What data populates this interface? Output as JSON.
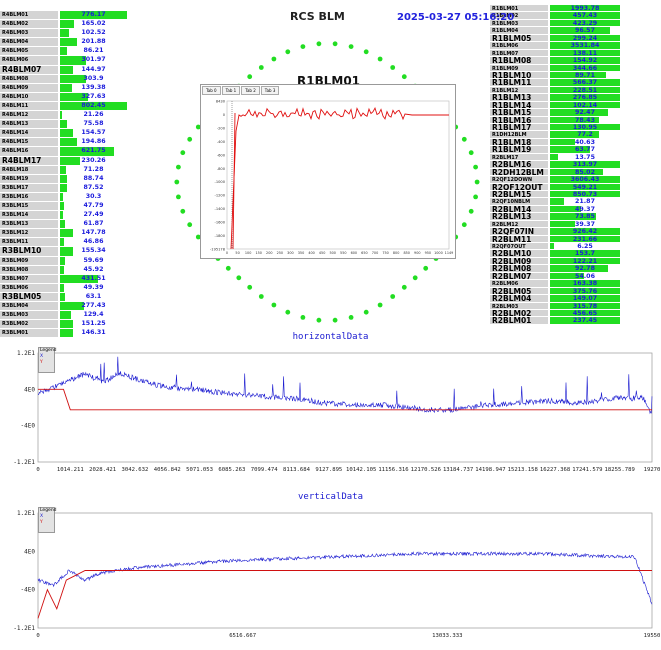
{
  "header": {
    "title": "RCS BLM",
    "timestamp": "2025-03-27 05:16:20",
    "beam_title": "R1BLM01"
  },
  "left_list": [
    {
      "name": "R4BLM01",
      "value": "776.17",
      "fill": 1.0
    },
    {
      "name": "R4BLM02",
      "value": "165.02",
      "fill": 0.21
    },
    {
      "name": "R4BLM03",
      "value": "102.52",
      "fill": 0.13
    },
    {
      "name": "R4BLM04",
      "value": "201.88",
      "fill": 0.26
    },
    {
      "name": "R4BLM05",
      "value": "86.21",
      "fill": 0.11
    },
    {
      "name": "R4BLM06",
      "value": "301.97",
      "fill": 0.39
    },
    {
      "name": "R4BLM07",
      "value": "144.97",
      "fill": 0.19,
      "big": true
    },
    {
      "name": "R4BLM08",
      "value": "303.9",
      "fill": 0.39
    },
    {
      "name": "R4BLM09",
      "value": "139.38",
      "fill": 0.18
    },
    {
      "name": "R4BLM10",
      "value": "327.63",
      "fill": 0.42
    },
    {
      "name": "R4BLM11",
      "value": "802.45",
      "fill": 1.0
    },
    {
      "name": "R4BLM12",
      "value": "21.26",
      "fill": 0.03
    },
    {
      "name": "R4BLM13",
      "value": "75.58",
      "fill": 0.1
    },
    {
      "name": "R4BLM14",
      "value": "154.57",
      "fill": 0.2
    },
    {
      "name": "R4BLM15",
      "value": "194.86",
      "fill": 0.25
    },
    {
      "name": "R4BLM16",
      "value": "621.75",
      "fill": 0.8
    },
    {
      "name": "R4BLM17",
      "value": "230.26",
      "fill": 0.3,
      "big": true
    },
    {
      "name": "R4BLM18",
      "value": "71.28",
      "fill": 0.09
    },
    {
      "name": "R4BLM19",
      "value": "88.74",
      "fill": 0.11
    },
    {
      "name": "R3BLM17",
      "value": "87.52",
      "fill": 0.11
    },
    {
      "name": "R3BLM16",
      "value": "30.3",
      "fill": 0.04
    },
    {
      "name": "R3BLM15",
      "value": "47.79",
      "fill": 0.06
    },
    {
      "name": "R3BLM14",
      "value": "27.49",
      "fill": 0.04
    },
    {
      "name": "R3BLM13",
      "value": "61.87",
      "fill": 0.08
    },
    {
      "name": "R3BLM12",
      "value": "147.78",
      "fill": 0.19
    },
    {
      "name": "R3BLM11",
      "value": "46.86",
      "fill": 0.06
    },
    {
      "name": "R3BLM10",
      "value": "155.34",
      "fill": 0.2,
      "big": true
    },
    {
      "name": "R3BLM09",
      "value": "59.69",
      "fill": 0.08
    },
    {
      "name": "R3BLM08",
      "value": "45.92",
      "fill": 0.06
    },
    {
      "name": "R3BLM07",
      "value": "431.51",
      "fill": 0.56
    },
    {
      "name": "R3BLM06",
      "value": "49.39",
      "fill": 0.06
    },
    {
      "name": "R3BLM05",
      "value": "63.1",
      "fill": 0.08,
      "big": true
    },
    {
      "name": "R3BLM04",
      "value": "277.43",
      "fill": 0.36
    },
    {
      "name": "R3BLM03",
      "value": "129.4",
      "fill": 0.17
    },
    {
      "name": "R3BLM02",
      "value": "151.25",
      "fill": 0.19
    },
    {
      "name": "R3BLM01",
      "value": "146.31",
      "fill": 0.19
    }
  ],
  "right_list": [
    {
      "name": "R1BLM01",
      "value": "1993.78",
      "fill": 1.0
    },
    {
      "name": "R1BLM02",
      "value": "457.43",
      "fill": 1.0
    },
    {
      "name": "R1BLM03",
      "value": "423.29",
      "fill": 1.0
    },
    {
      "name": "R1BLM04",
      "value": "96.57",
      "fill": 0.85
    },
    {
      "name": "R1BLM05",
      "value": "299.24",
      "fill": 1.0,
      "big": true
    },
    {
      "name": "R1BLM06",
      "value": "3531.84",
      "fill": 1.0
    },
    {
      "name": "R1BLM07",
      "value": "138.11",
      "fill": 1.0
    },
    {
      "name": "R1BLM08",
      "value": "154.92",
      "fill": 1.0,
      "big": true
    },
    {
      "name": "R1BLM09",
      "value": "344.66",
      "fill": 1.0
    },
    {
      "name": "R1BLM10",
      "value": "89.71",
      "fill": 0.8,
      "big": true
    },
    {
      "name": "R1BLM11",
      "value": "566.37",
      "fill": 1.0,
      "big": true
    },
    {
      "name": "R1BLM12",
      "value": "228.51",
      "fill": 1.0
    },
    {
      "name": "R1BLM13",
      "value": "276.85",
      "fill": 1.0,
      "big": true
    },
    {
      "name": "R1BLM14",
      "value": "102.14",
      "fill": 1.0,
      "big": true
    },
    {
      "name": "R1BLM15",
      "value": "92.47",
      "fill": 0.83,
      "big": true
    },
    {
      "name": "R1BLM16",
      "value": "78.43",
      "fill": 0.7,
      "big": true
    },
    {
      "name": "R1BLM17",
      "value": "130.95",
      "fill": 1.0,
      "big": true
    },
    {
      "name": "R1DH12BLM",
      "value": "77.2",
      "fill": 0.7
    },
    {
      "name": "R1BLM18",
      "value": "40.63",
      "fill": 0.36,
      "big": true
    },
    {
      "name": "R1BLM19",
      "value": "63.77",
      "fill": 0.57,
      "big": true
    },
    {
      "name": "R2BLM17",
      "value": "13.75",
      "fill": 0.12
    },
    {
      "name": "R2BLM16",
      "value": "313.97",
      "fill": 1.0,
      "big": true
    },
    {
      "name": "R2DH12BLM",
      "value": "85.02",
      "fill": 0.76,
      "big": true
    },
    {
      "name": "R2QF12DOWN",
      "value": "3606.43",
      "fill": 1.0
    },
    {
      "name": "R2QF12OUT",
      "value": "549.21",
      "fill": 1.0,
      "big": true
    },
    {
      "name": "R2BLM15",
      "value": "850.73",
      "fill": 1.0,
      "big": true
    },
    {
      "name": "R2QF10NBLM",
      "value": "21.87",
      "fill": 0.2
    },
    {
      "name": "R2BLM14",
      "value": "49.37",
      "fill": 0.44,
      "big": true
    },
    {
      "name": "R2BLM13",
      "value": "73.85",
      "fill": 0.66,
      "big": true
    },
    {
      "name": "R2BLM12",
      "value": "39.37",
      "fill": 0.35
    },
    {
      "name": "R2QF07IN",
      "value": "926.42",
      "fill": 1.0,
      "big": true
    },
    {
      "name": "R2BLM11",
      "value": "231.66",
      "fill": 1.0,
      "big": true
    },
    {
      "name": "R2QF07OUT",
      "value": "6.25",
      "fill": 0.06
    },
    {
      "name": "R2BLM10",
      "value": "153.7",
      "fill": 1.0,
      "big": true
    },
    {
      "name": "R2BLM09",
      "value": "122.21",
      "fill": 1.0,
      "big": true
    },
    {
      "name": "R2BLM08",
      "value": "92.78",
      "fill": 0.83,
      "big": true
    },
    {
      "name": "R2BLM07",
      "value": "54.06",
      "fill": 0.48,
      "big": true
    },
    {
      "name": "R2BLM06",
      "value": "163.38",
      "fill": 1.0
    },
    {
      "name": "R2BLM05",
      "value": "375.76",
      "fill": 1.0,
      "big": true
    },
    {
      "name": "R2BLM04",
      "value": "149.07",
      "fill": 1.0,
      "big": true
    },
    {
      "name": "R2BLM03",
      "value": "315.78",
      "fill": 1.0
    },
    {
      "name": "R2BLM02",
      "value": "456.65",
      "fill": 1.0,
      "big": true
    },
    {
      "name": "R2BLM01",
      "value": "237.45",
      "fill": 1.0,
      "big": true
    }
  ],
  "mini_chart": {
    "tabs": [
      "Tab 0",
      "Tab 1",
      "Tab 2",
      "Tab 3"
    ],
    "yticks": [
      "8430",
      "0",
      "-200",
      "-400",
      "-600",
      "-800",
      "-1000",
      "-1200",
      "-1400",
      "-1600",
      "-1800",
      "-195178"
    ],
    "xticks": [
      "0",
      "50",
      "100",
      "150",
      "200",
      "250",
      "300",
      "350",
      "400",
      "450",
      "500",
      "550",
      "600",
      "650",
      "700",
      "750",
      "800",
      "850",
      "900",
      "950",
      "1000",
      "1149"
    ]
  },
  "colors": {
    "bar": "#22dd22",
    "value": "#1a1adc",
    "dot": "#22dd22",
    "series_x": "#1a1ad0",
    "series_y": "#d01010"
  },
  "plots": [
    {
      "title": "horizontalData",
      "legend": [
        "Legend",
        "X",
        "Y"
      ],
      "yticks": [
        "1.2E1",
        "4E0",
        "-4E0",
        "-1.2E1"
      ],
      "xticks": [
        "0",
        "1014.211",
        "2028.421",
        "3042.632",
        "4056.842",
        "5071.053",
        "6085.263",
        "7099.474",
        "8113.684",
        "9127.895",
        "10142.105",
        "11156.316",
        "12170.526",
        "13184.737",
        "14198.947",
        "15213.158",
        "16227.368",
        "17241.579",
        "18255.789",
        "19270"
      ]
    },
    {
      "title": "verticalData",
      "legend": [
        "Legend",
        "X",
        "Y"
      ],
      "yticks": [
        "1.2E1",
        "4E0",
        "-4E0",
        "-1.2E1"
      ],
      "xticks": [
        "0",
        "6516.667",
        "13033.333",
        "19550"
      ]
    }
  ],
  "chart_data": [
    {
      "type": "line",
      "title": "horizontalData",
      "ylim": [
        -12,
        12
      ],
      "xlim": [
        0,
        19270
      ],
      "series": [
        {
          "name": "X",
          "x": [
            0,
            500,
            1000,
            1500,
            2000,
            2600,
            3200,
            4000,
            5000,
            6000,
            7000,
            8000,
            9000,
            10000,
            11000,
            12000,
            13000,
            14000,
            15000,
            16000,
            17000,
            18000,
            19000,
            19270
          ],
          "y": [
            3,
            4.5,
            6,
            7.5,
            5.5,
            7.5,
            6,
            4.5,
            4,
            3,
            2.5,
            2,
            1,
            0.5,
            0.5,
            -0.5,
            -0.5,
            0.5,
            1,
            1.5,
            1,
            2,
            2,
            -2
          ]
        },
        {
          "name": "Y",
          "x": [
            0,
            800,
            1014,
            19000,
            19270
          ],
          "y": [
            4,
            4,
            -0.5,
            -0.5,
            -0.5
          ]
        }
      ]
    },
    {
      "type": "line",
      "title": "verticalData",
      "ylim": [
        -12,
        12
      ],
      "xlim": [
        0,
        19550
      ],
      "series": [
        {
          "name": "X",
          "x": [
            0,
            500,
            1000,
            1500,
            2000,
            3000,
            4000,
            6000,
            8000,
            10000,
            12000,
            14000,
            16000,
            18000,
            19000,
            19550
          ],
          "y": [
            -2,
            -3,
            0,
            -2,
            -0.5,
            0.5,
            1,
            2,
            2.5,
            3,
            3.5,
            3.5,
            3.5,
            3,
            2.8,
            -7
          ]
        },
        {
          "name": "Y",
          "x": [
            0,
            300,
            600,
            900,
            1200,
            1500,
            2000,
            19550
          ],
          "y": [
            -10,
            -4,
            -8,
            -2,
            -1,
            0,
            0,
            0
          ]
        }
      ]
    }
  ]
}
